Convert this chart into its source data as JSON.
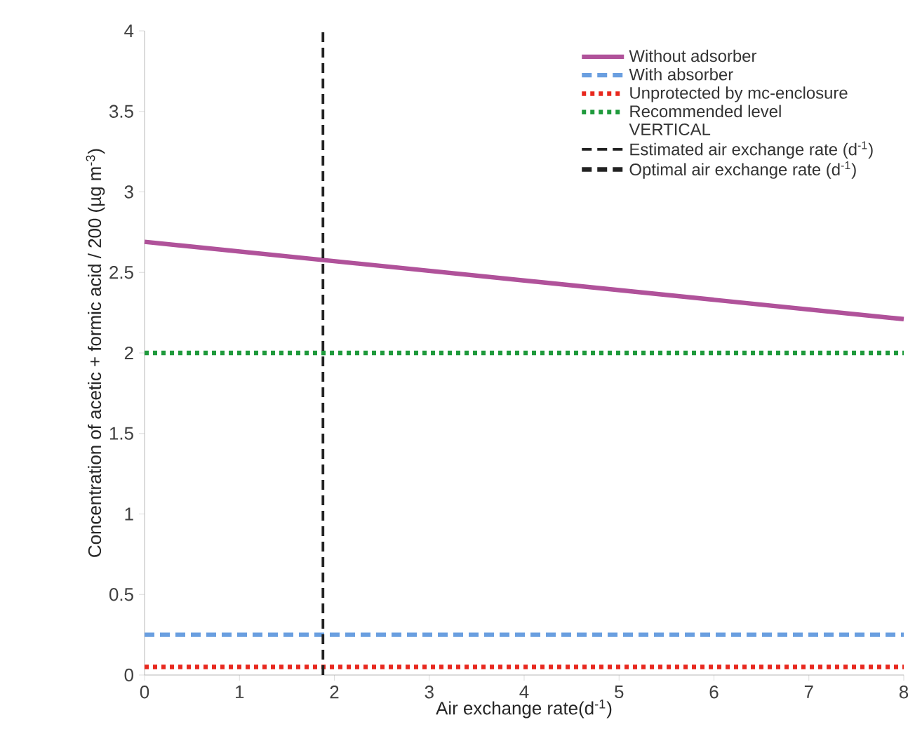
{
  "chart_data": {
    "type": "line",
    "xlabel": "Air exchange rate(d$^{-1}$)",
    "ylabel": "Concentration of acetic + formic acid / 200 (µg m$^{-3}$)",
    "xlim": [
      0,
      8
    ],
    "ylim": [
      0,
      4
    ],
    "xticks": [
      0,
      1,
      2,
      3,
      4,
      5,
      6,
      7,
      8
    ],
    "yticks": [
      0,
      0.5,
      1,
      1.5,
      2,
      2.5,
      3,
      3.5,
      4
    ],
    "grid": false,
    "legend": "top right",
    "marker": "none",
    "annotations": [
      "VERTICAL"
    ],
    "series": [
      {
        "name": "Without adsorber",
        "color": "#b0529a",
        "line_style": "solid",
        "x": [
          0,
          8
        ],
        "values": [
          2.69,
          2.21
        ]
      },
      {
        "name": "With absorber",
        "color": "#6a9fe0",
        "line_style": "dashed",
        "x": [
          0,
          8
        ],
        "values": [
          0.25,
          0.25
        ]
      },
      {
        "name": "Unprotected by mc-enclosure",
        "color": "#e8281e",
        "line_style": "dotted",
        "x": [
          0,
          8
        ],
        "values": [
          0.05,
          0.05
        ]
      },
      {
        "name": "Recommended level",
        "color": "#1f9a3c",
        "line_style": "dotted",
        "x": [
          0,
          8
        ],
        "values": [
          2,
          2
        ]
      },
      {
        "name": "Estimated air exchange rate (d$^{-1}$)",
        "color": "#222222",
        "line_style": "dashed",
        "x": [
          1.88,
          1.88
        ],
        "values": [
          0,
          4
        ]
      },
      {
        "name": "Optimal air exchange rate (d$^{-1}$)",
        "color": "#222222",
        "line_style": "dashed"
      }
    ]
  }
}
